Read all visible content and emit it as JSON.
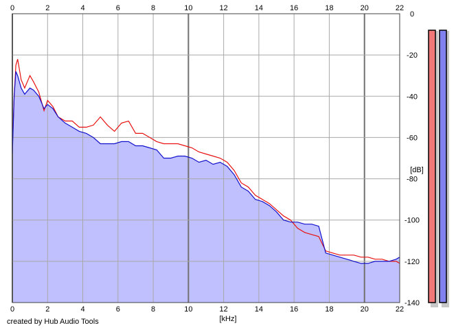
{
  "chart_data": {
    "type": "area",
    "title": "",
    "xlabel": "[kHz]",
    "ylabel": "[dB]",
    "x_ticks": [
      "0",
      "2",
      "4",
      "6",
      "8",
      "10",
      "12",
      "14",
      "16",
      "18",
      "20",
      "22"
    ],
    "y_ticks": [
      "0",
      "-20",
      "-40",
      "-60",
      "-80",
      "-100",
      "-120",
      "-140"
    ],
    "xlim": [
      0,
      22
    ],
    "ylim": [
      -140,
      0
    ],
    "grid": true,
    "legend": "none",
    "series": [
      {
        "color": "#e81010",
        "x": [
          0,
          0.1,
          0.2,
          0.3,
          0.5,
          0.7,
          1.0,
          1.2,
          1.5,
          1.8,
          2.0,
          2.3,
          2.6,
          3.0,
          3.4,
          3.8,
          4.2,
          4.6,
          5.0,
          5.4,
          5.8,
          6.2,
          6.6,
          7.0,
          7.4,
          7.8,
          8.2,
          8.6,
          9.0,
          9.4,
          9.8,
          10.2,
          10.6,
          11.0,
          11.4,
          11.8,
          12.2,
          12.6,
          13.0,
          13.4,
          13.8,
          14.2,
          14.6,
          15.0,
          15.4,
          15.8,
          16.2,
          16.6,
          17.0,
          17.4,
          17.8,
          18.2,
          18.6,
          19.0,
          19.4,
          19.8,
          20.2,
          20.6,
          21.0,
          21.4,
          21.8,
          22.0
        ],
        "y": [
          -65,
          -40,
          -25,
          -22,
          -32,
          -36,
          -30,
          -33,
          -38,
          -47,
          -42,
          -45,
          -50,
          -52,
          -52,
          -55,
          -55,
          -54,
          -50,
          -54,
          -57,
          -53,
          -52,
          -58,
          -58,
          -60,
          -62,
          -63,
          -63,
          -63,
          -64,
          -65,
          -67,
          -68,
          -69,
          -70,
          -72,
          -76,
          -82,
          -84,
          -88,
          -90,
          -92,
          -95,
          -98,
          -100,
          -104,
          -106,
          -107,
          -108,
          -115,
          -116,
          -117,
          -117,
          -117,
          -118,
          -118,
          -119,
          -119,
          -120,
          -120,
          -121
        ]
      },
      {
        "color": "#1010cc",
        "x": [
          0,
          0.1,
          0.2,
          0.3,
          0.5,
          0.7,
          1.0,
          1.2,
          1.5,
          1.8,
          2.0,
          2.3,
          2.6,
          3.0,
          3.4,
          3.8,
          4.2,
          4.6,
          5.0,
          5.4,
          5.8,
          6.2,
          6.6,
          7.0,
          7.4,
          7.8,
          8.2,
          8.6,
          9.0,
          9.4,
          9.8,
          10.2,
          10.6,
          11.0,
          11.4,
          11.8,
          12.2,
          12.6,
          13.0,
          13.4,
          13.8,
          14.2,
          14.6,
          15.0,
          15.4,
          15.8,
          16.2,
          16.6,
          17.0,
          17.4,
          17.8,
          18.2,
          18.6,
          19.0,
          19.4,
          19.8,
          20.2,
          20.6,
          21.0,
          21.4,
          21.8,
          22.0
        ],
        "y": [
          -68,
          -40,
          -28,
          -30,
          -36,
          -39,
          -36,
          -37,
          -40,
          -46,
          -44,
          -46,
          -50,
          -53,
          -55,
          -57,
          -58,
          -60,
          -63,
          -63,
          -63,
          -62,
          -62,
          -64,
          -64,
          -65,
          -66,
          -70,
          -70,
          -69,
          -69,
          -70,
          -72,
          -71,
          -73,
          -72,
          -74,
          -78,
          -84,
          -86,
          -90,
          -91,
          -93,
          -96,
          -100,
          -101,
          -101,
          -102,
          -102,
          -103,
          -116,
          -117,
          -118,
          -119,
          -120,
          -121,
          -121,
          -120,
          -120,
          -120,
          -119,
          -118
        ]
      }
    ],
    "fill_color": "#c0c0ff",
    "meters": [
      {
        "color": "#f07878",
        "level_db": -8
      },
      {
        "color": "#8080ee",
        "level_db": -8
      }
    ]
  },
  "credit": "created by Hub Audio Tools"
}
